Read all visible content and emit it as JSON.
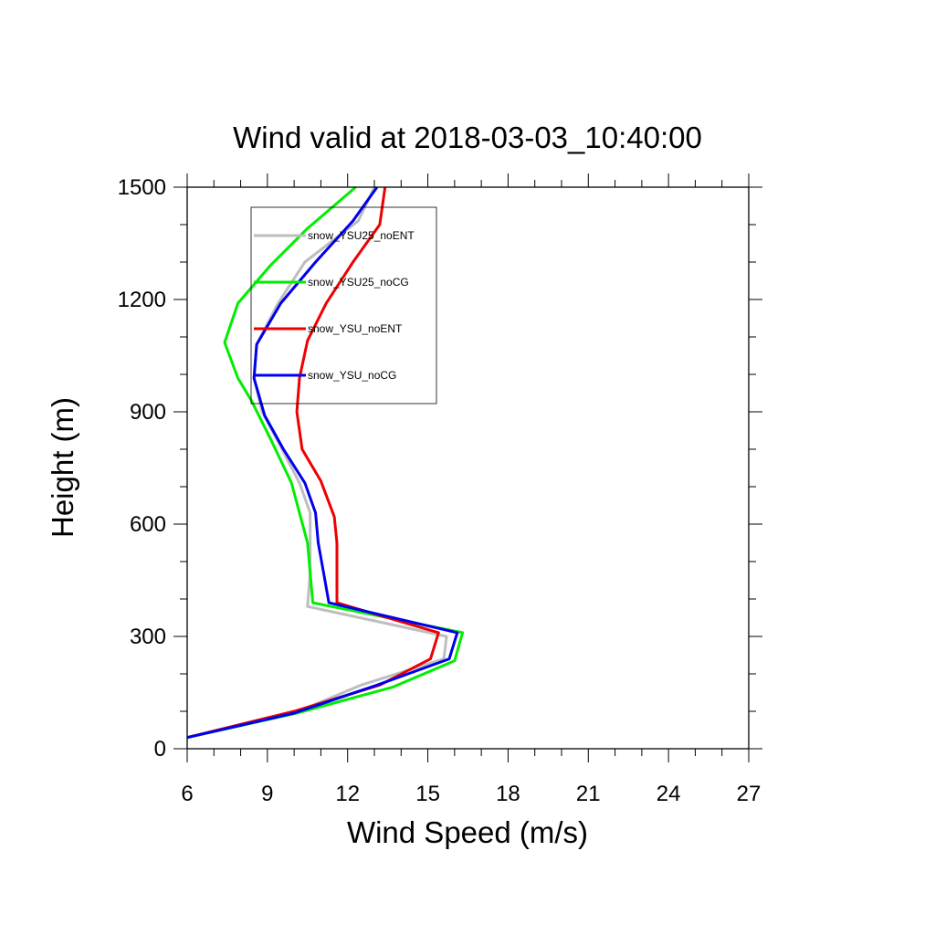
{
  "chart_data": {
    "type": "line",
    "title": "Wind valid at 2018-03-03_10:40:00",
    "xlabel": "Wind Speed (m/s)",
    "ylabel": "Height (m)",
    "xlim": [
      6,
      27
    ],
    "ylim": [
      0,
      1500
    ],
    "xticks": [
      6,
      9,
      12,
      15,
      18,
      21,
      24,
      27
    ],
    "yticks": [
      0,
      300,
      600,
      900,
      1200,
      1500
    ],
    "legend_position": "upper-left inside",
    "grid": false,
    "series": [
      {
        "name": "snow_YSU25_noENT",
        "color": "#bebebe",
        "points": [
          [
            6.0,
            30
          ],
          [
            10.0,
            95
          ],
          [
            12.5,
            170
          ],
          [
            15.6,
            240
          ],
          [
            15.7,
            300
          ],
          [
            10.5,
            380
          ],
          [
            10.6,
            470
          ],
          [
            10.6,
            560
          ],
          [
            10.6,
            630
          ],
          [
            10.2,
            710
          ],
          [
            9.4,
            820
          ],
          [
            8.8,
            900
          ],
          [
            8.5,
            990
          ],
          [
            8.6,
            1080
          ],
          [
            9.4,
            1190
          ],
          [
            10.4,
            1300
          ],
          [
            12.4,
            1410
          ],
          [
            13.0,
            1500
          ]
        ]
      },
      {
        "name": "snow_YSU25_noCG",
        "color": "#00ee00",
        "points": [
          [
            6.0,
            30
          ],
          [
            10.1,
            95
          ],
          [
            13.7,
            165
          ],
          [
            16.0,
            235
          ],
          [
            16.3,
            310
          ],
          [
            10.7,
            390
          ],
          [
            10.6,
            470
          ],
          [
            10.5,
            550
          ],
          [
            10.2,
            630
          ],
          [
            9.9,
            710
          ],
          [
            9.1,
            830
          ],
          [
            8.4,
            930
          ],
          [
            7.9,
            990
          ],
          [
            7.4,
            1085
          ],
          [
            7.9,
            1190
          ],
          [
            9.1,
            1290
          ],
          [
            10.5,
            1390
          ],
          [
            12.3,
            1500
          ]
        ]
      },
      {
        "name": "snow_YSU_noENT",
        "color": "#ee0000",
        "points": [
          [
            6.0,
            30
          ],
          [
            10.0,
            100
          ],
          [
            13.2,
            170
          ],
          [
            15.1,
            240
          ],
          [
            15.4,
            310
          ],
          [
            11.6,
            390
          ],
          [
            11.6,
            470
          ],
          [
            11.6,
            550
          ],
          [
            11.5,
            620
          ],
          [
            11.0,
            715
          ],
          [
            10.3,
            800
          ],
          [
            10.1,
            900
          ],
          [
            10.2,
            990
          ],
          [
            10.5,
            1090
          ],
          [
            11.2,
            1190
          ],
          [
            12.2,
            1300
          ],
          [
            13.2,
            1400
          ],
          [
            13.4,
            1500
          ]
        ]
      },
      {
        "name": "snow_YSU_noCG",
        "color": "#0000ee",
        "points": [
          [
            6.0,
            30
          ],
          [
            10.0,
            95
          ],
          [
            13.1,
            170
          ],
          [
            15.8,
            240
          ],
          [
            16.1,
            310
          ],
          [
            11.3,
            390
          ],
          [
            11.1,
            470
          ],
          [
            10.9,
            550
          ],
          [
            10.8,
            630
          ],
          [
            10.4,
            710
          ],
          [
            9.6,
            800
          ],
          [
            8.9,
            890
          ],
          [
            8.5,
            990
          ],
          [
            8.6,
            1080
          ],
          [
            9.5,
            1190
          ],
          [
            10.8,
            1300
          ],
          [
            12.2,
            1410
          ],
          [
            13.1,
            1500
          ]
        ]
      }
    ]
  }
}
